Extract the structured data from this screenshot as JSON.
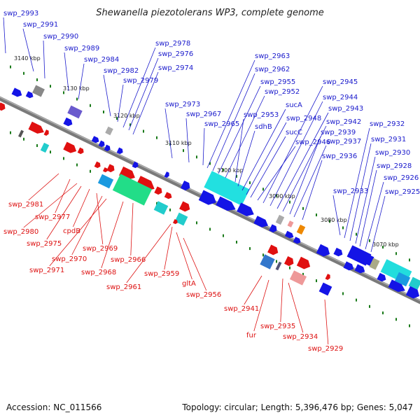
{
  "title": "Shewanella piezotolerans WP3, complete genome",
  "footer": {
    "accession": "Accession: NC_011566",
    "summary": "Topology: circular; Length: 5,396,476 bp; Genes: 5,047"
  },
  "colors": {
    "forward_label": "#1a1acc",
    "reverse_label": "#dd1111",
    "backbone": "#7a7a7a",
    "tick_dot": "#1a7a1a"
  },
  "ticks": [
    "3140 kbp",
    "3130 kbp",
    "3120 kbp",
    "3110 kbp",
    "3100 kbp",
    "3090 kbp",
    "3080 kbp",
    "3070 kbp"
  ],
  "forward_labels": [
    "swp_2993",
    "swp_2991",
    "swp_2990",
    "swp_2989",
    "swp_2984",
    "swp_2982",
    "swp_2979",
    "swp_2978",
    "swp_2976",
    "swp_2974",
    "swp_2973",
    "swp_2967",
    "swp_2965",
    "swp_2963",
    "swp_2962",
    "swp_2955",
    "swp_2952",
    "swp_2953",
    "sdhB",
    "sucA",
    "swp_2948",
    "sucC",
    "swp_2946",
    "swp_2945",
    "swp_2944",
    "swp_2943",
    "swp_2942",
    "swp_2939",
    "swp_2937",
    "swp_2936",
    "swp_2933",
    "swp_2932",
    "swp_2931",
    "swp_2930",
    "swp_2928",
    "swp_2926",
    "swp_2925"
  ],
  "reverse_labels": [
    "swp_2981",
    "swp_2977",
    "swp_2980",
    "swp_2975",
    "cpdB",
    "swp_2969",
    "swp_2970",
    "swp_2971",
    "swp_2966",
    "swp_2968",
    "swp_2961",
    "swp_2959",
    "gltA",
    "swp_2956",
    "swp_2941",
    "swp_2935",
    "fur",
    "swp_2934",
    "swp_2929"
  ]
}
